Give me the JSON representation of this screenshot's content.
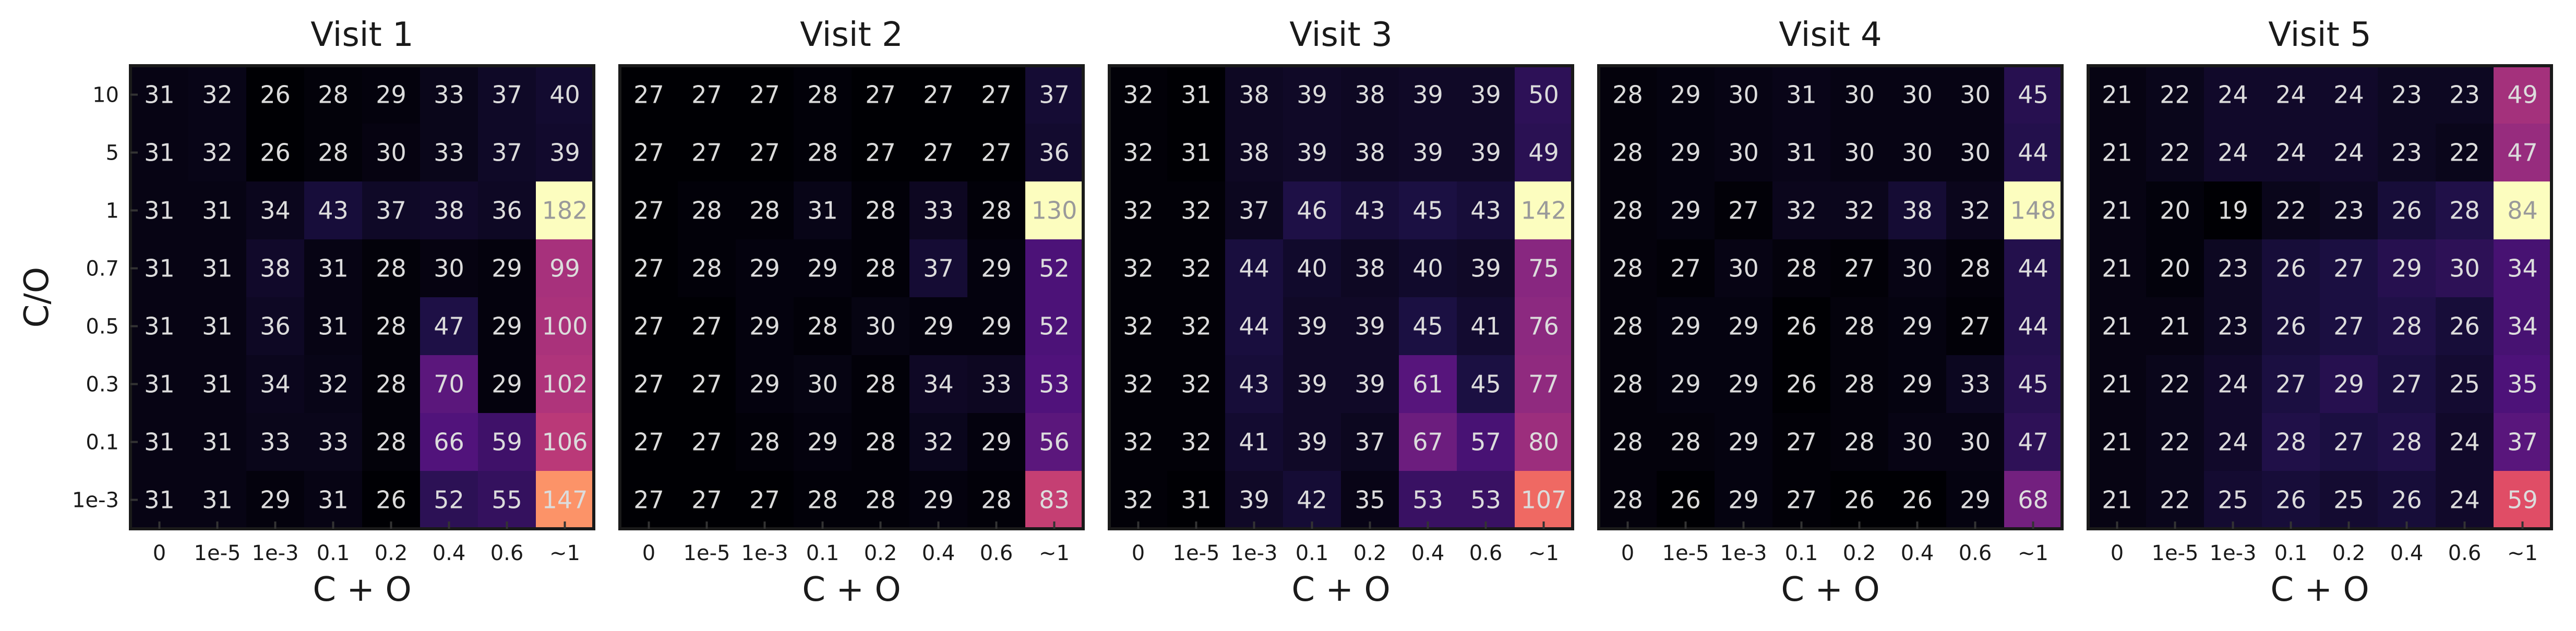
{
  "chart_data": [
    {
      "type": "heatmap",
      "title": "Visit 1",
      "xlabel": "C + O",
      "ylabel": "C/O",
      "x_categories": [
        "0",
        "1e-5",
        "1e-3",
        "0.1",
        "0.2",
        "0.4",
        "0.6",
        "~1"
      ],
      "y_categories": [
        "10",
        "5",
        "1",
        "0.7",
        "0.5",
        "0.3",
        "0.1",
        "1e-3"
      ],
      "values": [
        [
          31,
          32,
          26,
          28,
          29,
          33,
          37,
          40
        ],
        [
          31,
          32,
          26,
          28,
          30,
          33,
          37,
          39
        ],
        [
          31,
          31,
          34,
          43,
          37,
          38,
          36,
          182
        ],
        [
          31,
          31,
          38,
          31,
          28,
          30,
          29,
          99
        ],
        [
          31,
          31,
          36,
          31,
          28,
          47,
          29,
          100
        ],
        [
          31,
          31,
          34,
          32,
          28,
          70,
          29,
          102
        ],
        [
          31,
          31,
          33,
          33,
          28,
          66,
          59,
          106
        ],
        [
          31,
          31,
          29,
          31,
          26,
          52,
          55,
          147
        ]
      ],
      "colormap": "magma"
    },
    {
      "type": "heatmap",
      "title": "Visit 2",
      "xlabel": "C + O",
      "ylabel": "",
      "x_categories": [
        "0",
        "1e-5",
        "1e-3",
        "0.1",
        "0.2",
        "0.4",
        "0.6",
        "~1"
      ],
      "y_categories": [
        "10",
        "5",
        "1",
        "0.7",
        "0.5",
        "0.3",
        "0.1",
        "1e-3"
      ],
      "values": [
        [
          27,
          27,
          27,
          28,
          27,
          27,
          27,
          37
        ],
        [
          27,
          27,
          27,
          28,
          27,
          27,
          27,
          36
        ],
        [
          27,
          28,
          28,
          31,
          28,
          33,
          28,
          130
        ],
        [
          27,
          28,
          29,
          29,
          28,
          37,
          29,
          52
        ],
        [
          27,
          27,
          29,
          28,
          30,
          29,
          29,
          52
        ],
        [
          27,
          27,
          29,
          30,
          28,
          34,
          33,
          53
        ],
        [
          27,
          27,
          28,
          29,
          28,
          32,
          29,
          56
        ],
        [
          27,
          27,
          27,
          28,
          28,
          29,
          28,
          83
        ]
      ],
      "colormap": "magma"
    },
    {
      "type": "heatmap",
      "title": "Visit 3",
      "xlabel": "C + O",
      "ylabel": "",
      "x_categories": [
        "0",
        "1e-5",
        "1e-3",
        "0.1",
        "0.2",
        "0.4",
        "0.6",
        "~1"
      ],
      "y_categories": [
        "10",
        "5",
        "1",
        "0.7",
        "0.5",
        "0.3",
        "0.1",
        "1e-3"
      ],
      "values": [
        [
          32,
          31,
          38,
          39,
          38,
          39,
          39,
          50
        ],
        [
          32,
          31,
          38,
          39,
          38,
          39,
          39,
          49
        ],
        [
          32,
          32,
          37,
          46,
          43,
          45,
          43,
          142
        ],
        [
          32,
          32,
          44,
          40,
          38,
          40,
          39,
          75
        ],
        [
          32,
          32,
          44,
          39,
          39,
          45,
          41,
          76
        ],
        [
          32,
          32,
          43,
          39,
          39,
          61,
          45,
          77
        ],
        [
          32,
          32,
          41,
          39,
          37,
          67,
          57,
          80
        ],
        [
          32,
          31,
          39,
          42,
          35,
          53,
          53,
          107
        ]
      ],
      "colormap": "magma"
    },
    {
      "type": "heatmap",
      "title": "Visit 4",
      "xlabel": "C + O",
      "ylabel": "",
      "x_categories": [
        "0",
        "1e-5",
        "1e-3",
        "0.1",
        "0.2",
        "0.4",
        "0.6",
        "~1"
      ],
      "y_categories": [
        "10",
        "5",
        "1",
        "0.7",
        "0.5",
        "0.3",
        "0.1",
        "1e-3"
      ],
      "values": [
        [
          28,
          29,
          30,
          31,
          30,
          30,
          30,
          45
        ],
        [
          28,
          29,
          30,
          31,
          30,
          30,
          30,
          44
        ],
        [
          28,
          29,
          27,
          32,
          32,
          38,
          32,
          148
        ],
        [
          28,
          27,
          30,
          28,
          27,
          30,
          28,
          44
        ],
        [
          28,
          29,
          29,
          26,
          28,
          29,
          27,
          44
        ],
        [
          28,
          29,
          29,
          26,
          28,
          29,
          33,
          45
        ],
        [
          28,
          28,
          29,
          27,
          28,
          30,
          30,
          47
        ],
        [
          28,
          26,
          29,
          27,
          26,
          26,
          29,
          68
        ]
      ],
      "colormap": "magma"
    },
    {
      "type": "heatmap",
      "title": "Visit 5",
      "xlabel": "C + O",
      "ylabel": "",
      "x_categories": [
        "0",
        "1e-5",
        "1e-3",
        "0.1",
        "0.2",
        "0.4",
        "0.6",
        "~1"
      ],
      "y_categories": [
        "10",
        "5",
        "1",
        "0.7",
        "0.5",
        "0.3",
        "0.1",
        "1e-3"
      ],
      "values": [
        [
          21,
          22,
          24,
          24,
          24,
          23,
          23,
          49
        ],
        [
          21,
          22,
          24,
          24,
          24,
          23,
          22,
          47
        ],
        [
          21,
          20,
          19,
          22,
          23,
          26,
          28,
          84
        ],
        [
          21,
          20,
          23,
          26,
          27,
          29,
          30,
          34
        ],
        [
          21,
          21,
          23,
          26,
          27,
          28,
          26,
          34
        ],
        [
          21,
          22,
          24,
          27,
          29,
          27,
          25,
          35
        ],
        [
          21,
          22,
          24,
          28,
          27,
          28,
          24,
          37
        ],
        [
          21,
          22,
          25,
          26,
          25,
          26,
          24,
          59
        ]
      ],
      "colormap": "magma"
    }
  ]
}
